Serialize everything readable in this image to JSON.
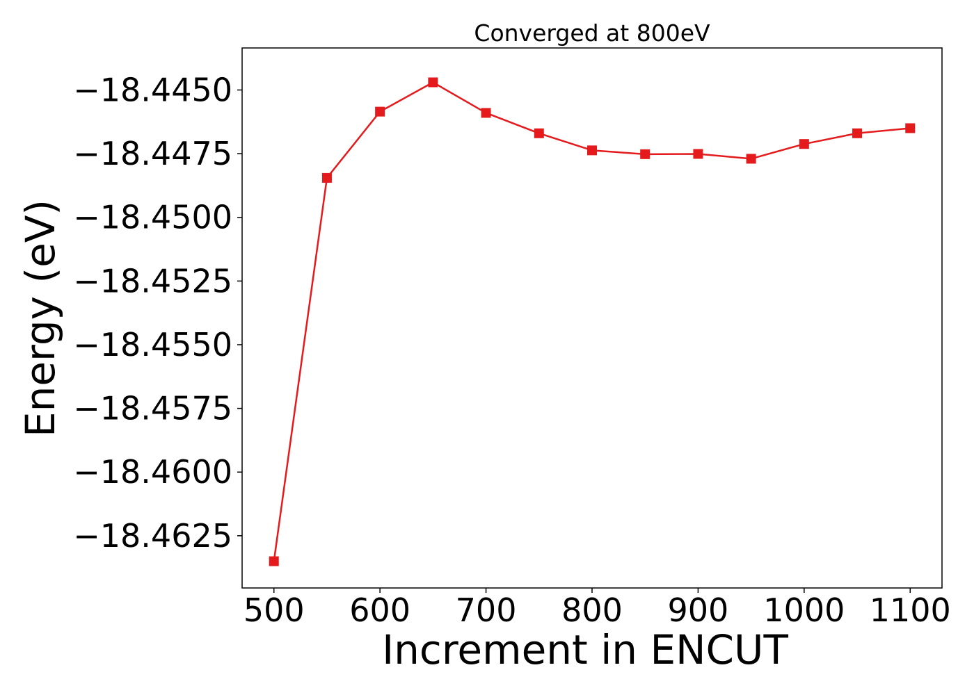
{
  "chart_data": {
    "type": "line",
    "title": "Converged at 800eV",
    "xlabel": "Increment in ENCUT",
    "ylabel": "Energy (eV)",
    "x": [
      500,
      550,
      600,
      650,
      700,
      750,
      800,
      850,
      900,
      950,
      1000,
      1050,
      1100
    ],
    "series": [
      {
        "values": [
          -18.4635,
          -18.44845,
          -18.44585,
          -18.4447,
          -18.4459,
          -18.4467,
          -18.44737,
          -18.44752,
          -18.44751,
          -18.4477,
          -18.44712,
          -18.4467,
          -18.4465
        ],
        "color": "#e41a1c",
        "marker": "square"
      }
    ],
    "xlim": [
      470,
      1130
    ],
    "ylim": [
      -18.46455,
      -18.44335
    ],
    "xticks": [
      500,
      600,
      700,
      800,
      900,
      1000,
      1100
    ],
    "xtick_labels": [
      "500",
      "600",
      "700",
      "800",
      "900",
      "1000",
      "1100"
    ],
    "yticks": [
      -18.445,
      -18.4475,
      -18.45,
      -18.4525,
      -18.455,
      -18.4575,
      -18.46,
      -18.4625
    ],
    "ytick_labels": [
      "−18.4450",
      "−18.4475",
      "−18.4500",
      "−18.4525",
      "−18.4550",
      "−18.4575",
      "−18.4600",
      "−18.4625"
    ],
    "grid": false,
    "legend": false
  }
}
